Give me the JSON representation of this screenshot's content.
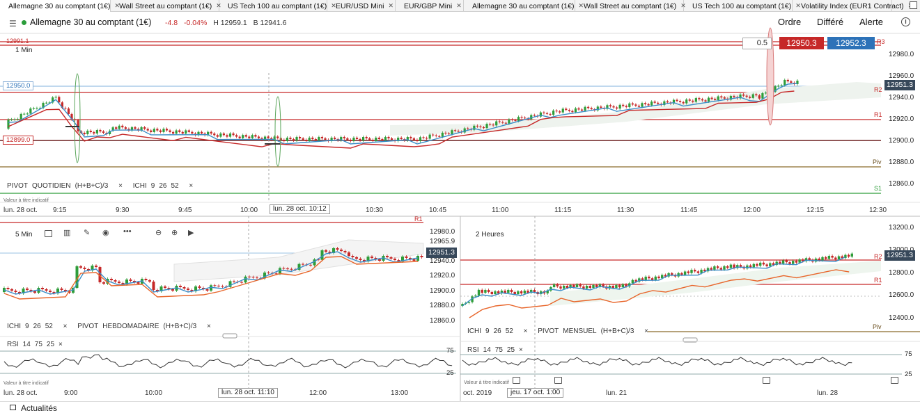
{
  "tabs": [
    {
      "label": "Allemagne 30 au comptant (1€)",
      "active": true
    },
    {
      "label": "Wall Street au comptant (1€)",
      "active": false
    },
    {
      "label": "US Tech 100 au comptant (1€)",
      "active": false
    },
    {
      "label": "EUR/USD Mini",
      "active": false
    },
    {
      "label": "EUR/GBP Mini",
      "active": false
    },
    {
      "label": "Allemagne 30 au comptant (1€)",
      "active": false
    },
    {
      "label": "Wall Street au comptant (1€)",
      "active": false
    },
    {
      "label": "US Tech 100 au comptant (1€)",
      "active": false
    },
    {
      "label": "Volatility Index (EUR1 Contract)",
      "active": false
    }
  ],
  "header": {
    "instrument": "Allemagne 30 au comptant (1€)",
    "change": "-4.8",
    "change_pct": "-0.04%",
    "high": "H 12959.1",
    "low": "B 12941.6",
    "ordre": "Ordre",
    "differe": "Différé",
    "alerte": "Alerte",
    "info_icon": "info-icon",
    "menu_icon": "hamburger-icon"
  },
  "trade": {
    "quantity": "0.5",
    "sell": "12950.3",
    "buy": "12952.3"
  },
  "main_chart": {
    "timeframe": "1 Min",
    "price_ticks": [
      "12980.0",
      "12960.0",
      "12940.0",
      "12920.0",
      "12900.0",
      "12880.0",
      "12860.0"
    ],
    "left_labels": {
      "top": "12991.1",
      "mid": "12950.0",
      "low": "12899.0"
    },
    "current_price": "12951.3",
    "pivot_labels": {
      "r3": "R3",
      "r2": "R2",
      "r1": "R1",
      "piv": "Piv",
      "s1": "S1"
    },
    "indicators": {
      "pivot": "PIVOT",
      "pivot_type": "QUOTIDIEN",
      "pivot_formula": "(H+B+C)/3",
      "ichi": "ICHI",
      "ichi_params": [
        "9",
        "26",
        "52"
      ]
    },
    "note": "Valeur à titre indicatif",
    "time_labels": [
      "lun. 28 oct.",
      "9:15",
      "9:30",
      "9:45",
      "10:00",
      "10:30",
      "10:45",
      "11:00",
      "11:15",
      "11:30",
      "11:45",
      "12:00",
      "12:15",
      "12:30"
    ],
    "cursor_time": "lun. 28 oct. 10:12",
    "close": "×"
  },
  "chart_5min": {
    "timeframe": "5 Min",
    "price_ticks": [
      "12980.0",
      "12965.9",
      "12940.0",
      "12920.0",
      "12900.0",
      "12880.0",
      "12860.0"
    ],
    "current_price": "12951.3",
    "pivot_r1": "R1",
    "indicators": {
      "ichi": "ICHI",
      "ichi_params": [
        "9",
        "26",
        "52"
      ],
      "pivot": "PIVOT",
      "pivot_type": "HEBDOMADAIRE",
      "pivot_formula": "(H+B+C)/3"
    },
    "rsi": {
      "label": "RSI",
      "params": [
        "14",
        "75",
        "25"
      ],
      "upper": "75",
      "lower": "25"
    },
    "note": "Valeur à titre indicatif",
    "time_labels": [
      "lun. 28 oct.",
      "9:00",
      "10:00",
      "12:00",
      "13:00"
    ],
    "cursor_time": "lun. 28 oct. 11:10"
  },
  "chart_2h": {
    "timeframe": "2 Heures",
    "price_ticks": [
      "13200.0",
      "13000.0",
      "12800.0",
      "12600.0",
      "12400.0"
    ],
    "current_price": "12951.3",
    "pivot_labels": {
      "r2": "R2",
      "r1": "R1",
      "piv": "Piv"
    },
    "indicators": {
      "ichi": "ICHI",
      "ichi_params": [
        "9",
        "26",
        "52"
      ],
      "pivot": "PIVOT",
      "pivot_type": "MENSUEL",
      "pivot_formula": "(H+B+C)/3"
    },
    "rsi": {
      "label": "RSI",
      "params": [
        "14",
        "75",
        "25"
      ],
      "upper": "75",
      "lower": "25"
    },
    "note": "Valeur à titre indicatif",
    "time_labels": [
      "oct. 2019",
      "lun. 21",
      "lun. 28"
    ],
    "cursor_time": "jeu. 17 oct. 1:00"
  },
  "footer": {
    "news": "Actualités"
  },
  "colors": {
    "up": "#2e9d3a",
    "down": "#c62828",
    "tenkan": "#3a8dc7",
    "kijun": "#c62828",
    "kijun5": "#e8652a",
    "pivot_r": "#c62828",
    "piv": "#8a6a2a",
    "s1": "#2e9d3a",
    "price_box": "#37485a"
  }
}
